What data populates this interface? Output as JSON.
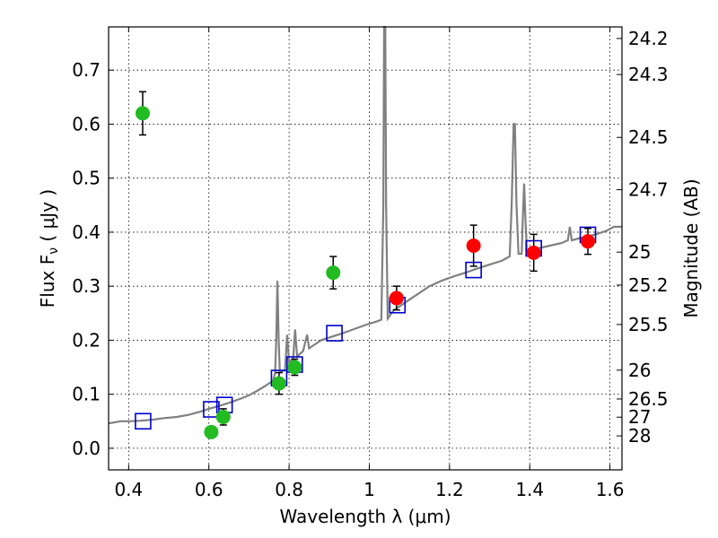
{
  "chart_data": {
    "type": "scatter",
    "xlabel": "Wavelength  λ (μm)",
    "ylabel": "Flux  F",
    "ylabel_sub": "ν",
    "ylabel_unit": "  ( μJy )",
    "y2label": "Magnitude (AB)",
    "xlim": [
      0.35,
      1.63
    ],
    "ylim": [
      -0.04,
      0.78
    ],
    "grid": true,
    "x_ticks": [
      0.4,
      0.6,
      0.8,
      1.0,
      1.2,
      1.4,
      1.6
    ],
    "x_tick_labels": [
      "0.4",
      "0.6",
      "0.8",
      "1",
      "1.2",
      "1.4",
      "1.6"
    ],
    "y_ticks": [
      0.0,
      0.1,
      0.2,
      0.3,
      0.4,
      0.5,
      0.6,
      0.7
    ],
    "y_tick_labels": [
      "0.0",
      "0.1",
      "0.2",
      "0.3",
      "0.4",
      "0.5",
      "0.6",
      "0.7"
    ],
    "mag_ticks": [
      "24.2",
      "24.3",
      "24.5",
      "24.7",
      "25",
      "25.2",
      "25.5",
      "26",
      "26.5",
      "27",
      "28"
    ],
    "colors": {
      "green": "#22bb22",
      "red": "#ff0000",
      "model_box": "#0000cc",
      "spectrum": "#808080"
    },
    "series": [
      {
        "marker": "circle",
        "color": "green",
        "points": [
          {
            "x": 0.435,
            "y": 0.62,
            "err": 0.04
          },
          {
            "x": 0.606,
            "y": 0.03,
            "err": 0.01
          },
          {
            "x": 0.636,
            "y": 0.058,
            "err": 0.015
          },
          {
            "x": 0.775,
            "y": 0.12,
            "err": 0.02
          },
          {
            "x": 0.814,
            "y": 0.15,
            "err": 0.015
          },
          {
            "x": 0.91,
            "y": 0.325,
            "err": 0.03
          }
        ]
      },
      {
        "marker": "circle",
        "color": "red",
        "points": [
          {
            "x": 1.068,
            "y": 0.278,
            "err": 0.022
          },
          {
            "x": 1.26,
            "y": 0.375,
            "err": 0.038
          },
          {
            "x": 1.41,
            "y": 0.362,
            "err": 0.034
          },
          {
            "x": 1.545,
            "y": 0.383,
            "err": 0.024
          }
        ]
      },
      {
        "marker": "square",
        "color": "model_box",
        "points": [
          {
            "x": 0.436,
            "y": 0.05
          },
          {
            "x": 0.606,
            "y": 0.072
          },
          {
            "x": 0.639,
            "y": 0.08
          },
          {
            "x": 0.775,
            "y": 0.13
          },
          {
            "x": 0.814,
            "y": 0.155
          },
          {
            "x": 0.913,
            "y": 0.213
          },
          {
            "x": 1.07,
            "y": 0.265
          },
          {
            "x": 1.26,
            "y": 0.33
          },
          {
            "x": 1.41,
            "y": 0.37
          },
          {
            "x": 1.545,
            "y": 0.395
          }
        ]
      }
    ],
    "spectrum": [
      [
        0.35,
        0.046
      ],
      [
        0.38,
        0.05
      ],
      [
        0.4,
        0.05
      ],
      [
        0.43,
        0.051
      ],
      [
        0.46,
        0.053
      ],
      [
        0.49,
        0.056
      ],
      [
        0.52,
        0.058
      ],
      [
        0.55,
        0.062
      ],
      [
        0.58,
        0.068
      ],
      [
        0.6,
        0.073
      ],
      [
        0.62,
        0.077
      ],
      [
        0.65,
        0.084
      ],
      [
        0.68,
        0.092
      ],
      [
        0.7,
        0.098
      ],
      [
        0.72,
        0.106
      ],
      [
        0.74,
        0.115
      ],
      [
        0.76,
        0.125
      ],
      [
        0.765,
        0.14
      ],
      [
        0.768,
        0.2
      ],
      [
        0.771,
        0.31
      ],
      [
        0.774,
        0.2
      ],
      [
        0.777,
        0.14
      ],
      [
        0.79,
        0.145
      ],
      [
        0.795,
        0.21
      ],
      [
        0.8,
        0.16
      ],
      [
        0.81,
        0.165
      ],
      [
        0.815,
        0.22
      ],
      [
        0.82,
        0.17
      ],
      [
        0.835,
        0.18
      ],
      [
        0.845,
        0.21
      ],
      [
        0.85,
        0.185
      ],
      [
        0.86,
        0.19
      ],
      [
        0.88,
        0.2
      ],
      [
        0.9,
        0.205
      ],
      [
        0.93,
        0.212
      ],
      [
        0.96,
        0.22
      ],
      [
        0.99,
        0.228
      ],
      [
        1.02,
        0.235
      ],
      [
        1.03,
        0.238
      ],
      [
        1.035,
        0.45
      ],
      [
        1.037,
        0.78
      ],
      [
        1.04,
        0.78
      ],
      [
        1.042,
        0.45
      ],
      [
        1.046,
        0.24
      ],
      [
        1.06,
        0.255
      ],
      [
        1.09,
        0.27
      ],
      [
        1.12,
        0.285
      ],
      [
        1.15,
        0.3
      ],
      [
        1.18,
        0.31
      ],
      [
        1.21,
        0.318
      ],
      [
        1.24,
        0.325
      ],
      [
        1.27,
        0.333
      ],
      [
        1.3,
        0.34
      ],
      [
        1.33,
        0.347
      ],
      [
        1.35,
        0.355
      ],
      [
        1.355,
        0.45
      ],
      [
        1.36,
        0.6
      ],
      [
        1.363,
        0.6
      ],
      [
        1.367,
        0.45
      ],
      [
        1.372,
        0.36
      ],
      [
        1.38,
        0.36
      ],
      [
        1.383,
        0.43
      ],
      [
        1.386,
        0.49
      ],
      [
        1.389,
        0.43
      ],
      [
        1.393,
        0.365
      ],
      [
        1.42,
        0.37
      ],
      [
        1.45,
        0.375
      ],
      [
        1.48,
        0.38
      ],
      [
        1.495,
        0.385
      ],
      [
        1.5,
        0.41
      ],
      [
        1.505,
        0.385
      ],
      [
        1.53,
        0.39
      ],
      [
        1.56,
        0.395
      ],
      [
        1.59,
        0.402
      ],
      [
        1.61,
        0.41
      ],
      [
        1.63,
        0.41
      ]
    ]
  }
}
